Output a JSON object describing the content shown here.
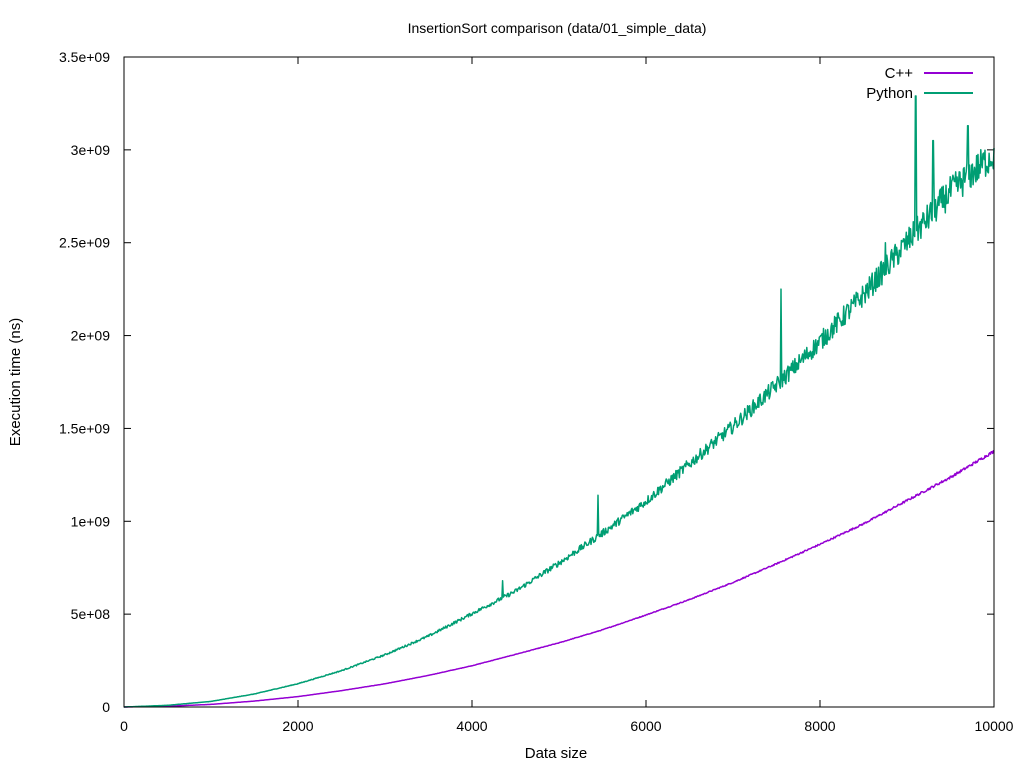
{
  "chart_data": {
    "type": "line",
    "title": "InsertionSort comparison (data/01_simple_data)",
    "xlabel": "Data size",
    "ylabel": "Execution time (ns)",
    "xlim": [
      0,
      10000
    ],
    "ylim": [
      0,
      3500000000
    ],
    "x_ticks": [
      0,
      2000,
      4000,
      6000,
      8000,
      10000
    ],
    "x_tick_labels": [
      "0",
      "2000",
      "4000",
      "6000",
      "8000",
      "10000"
    ],
    "y_ticks": [
      0,
      500000000,
      1000000000,
      1500000000,
      2000000000,
      2500000000,
      3000000000,
      3500000000
    ],
    "y_tick_labels": [
      "0",
      "5e+08",
      "1e+09",
      "1.5e+09",
      "2e+09",
      "2.5e+09",
      "3e+09",
      "3.5e+09"
    ],
    "grid": false,
    "legend_position": "top-right",
    "x": [
      0,
      500,
      1000,
      1500,
      2000,
      2500,
      3000,
      3500,
      4000,
      4500,
      5000,
      5500,
      6000,
      6500,
      7000,
      7500,
      8000,
      8500,
      9000,
      9500,
      10000
    ],
    "series": [
      {
        "name": "C++",
        "color": "#9400d3",
        "values": [
          0,
          4000000,
          14000000,
          32000000,
          56000000,
          88000000,
          125000000,
          170000000,
          222000000,
          283000000,
          345000000,
          415000000,
          495000000,
          578000000,
          670000000,
          770000000,
          875000000,
          985000000,
          1110000000,
          1235000000,
          1375000000
        ]
      },
      {
        "name": "Python",
        "color": "#009e73",
        "values": [
          0,
          9000000,
          30000000,
          70000000,
          125000000,
          195000000,
          280000000,
          380000000,
          500000000,
          620000000,
          770000000,
          930000000,
          1100000000,
          1300000000,
          1500000000,
          1720000000,
          1950000000,
          2200000000,
          2480000000,
          2750000000,
          2950000000
        ],
        "spikes": [
          {
            "x": 4350,
            "y": 680000000
          },
          {
            "x": 5450,
            "y": 1140000000
          },
          {
            "x": 7550,
            "y": 2250000000
          },
          {
            "x": 8750,
            "y": 2500000000
          },
          {
            "x": 9100,
            "y": 3290000000
          },
          {
            "x": 9300,
            "y": 3050000000
          },
          {
            "x": 9700,
            "y": 3130000000
          }
        ]
      }
    ]
  }
}
